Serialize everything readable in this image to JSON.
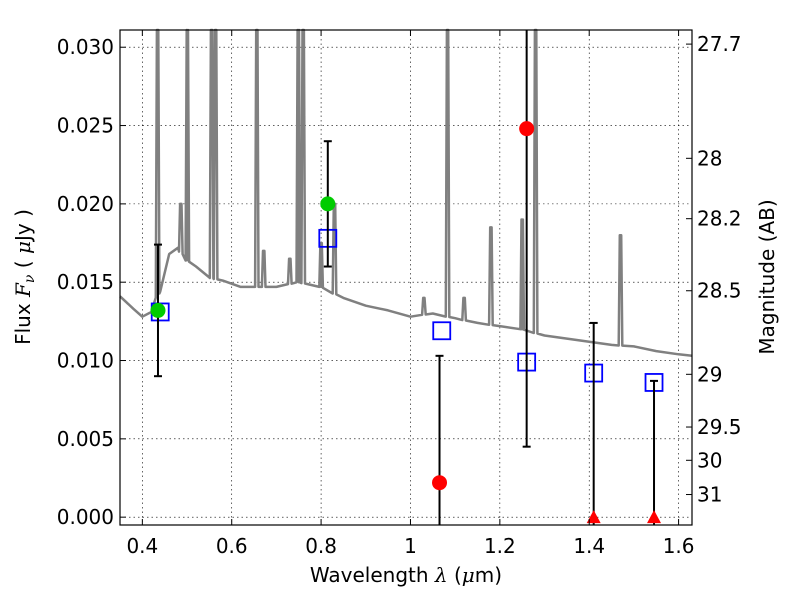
{
  "chart_data": {
    "type": "scatter",
    "xlabel": {
      "text": "Wavelength",
      "symbol": "λ",
      "unit_open": " (",
      "unit_mu": "μ",
      "unit_rest": "m)"
    },
    "ylabel": {
      "text": "Flux",
      "symbol": "F",
      "sub": "ν",
      "unit_open": " ( ",
      "unit_mu": "μ",
      "unit_rest": "Jy )"
    },
    "y2label": "Magnitude (AB)",
    "xlim": [
      0.35,
      1.63
    ],
    "ylim": [
      -0.0005,
      0.0311
    ],
    "grid": true,
    "x_ticks": [
      {
        "v": 0.4,
        "label": "0.4"
      },
      {
        "v": 0.6,
        "label": "0.6"
      },
      {
        "v": 0.8,
        "label": "0.8"
      },
      {
        "v": 1.0,
        "label": "1"
      },
      {
        "v": 1.2,
        "label": "1.2"
      },
      {
        "v": 1.4,
        "label": "1.4"
      },
      {
        "v": 1.6,
        "label": "1.6"
      }
    ],
    "y_ticks": [
      {
        "v": 0.0,
        "label": "0.000"
      },
      {
        "v": 0.005,
        "label": "0.005"
      },
      {
        "v": 0.01,
        "label": "0.010"
      },
      {
        "v": 0.015,
        "label": "0.015"
      },
      {
        "v": 0.02,
        "label": "0.020"
      },
      {
        "v": 0.025,
        "label": "0.025"
      },
      {
        "v": 0.03,
        "label": "0.030"
      }
    ],
    "mag_ticks": [
      {
        "mag": 27.7,
        "label": "27.7"
      },
      {
        "mag": 28,
        "label": "28"
      },
      {
        "mag": 28.2,
        "label": "28.2"
      },
      {
        "mag": 28.5,
        "label": "28.5"
      },
      {
        "mag": 29,
        "label": "29"
      },
      {
        "mag": 29.5,
        "label": "29.5"
      },
      {
        "mag": 30,
        "label": "30"
      },
      {
        "mag": 31,
        "label": "31"
      }
    ],
    "series": [
      {
        "name": "template-spectrum",
        "color": "#808080",
        "continuum": [
          [
            0.35,
            0.0141
          ],
          [
            0.38,
            0.0133
          ],
          [
            0.4,
            0.0128
          ],
          [
            0.42,
            0.0131
          ],
          [
            0.44,
            0.0144
          ],
          [
            0.46,
            0.0168
          ],
          [
            0.48,
            0.0172
          ],
          [
            0.5,
            0.0164
          ],
          [
            0.52,
            0.016
          ],
          [
            0.55,
            0.0153
          ],
          [
            0.58,
            0.0151
          ],
          [
            0.62,
            0.0147
          ],
          [
            0.66,
            0.0147
          ],
          [
            0.7,
            0.0147
          ],
          [
            0.75,
            0.015
          ],
          [
            0.8,
            0.0147
          ],
          [
            0.85,
            0.014
          ],
          [
            0.9,
            0.0135
          ],
          [
            0.95,
            0.0132
          ],
          [
            1.0,
            0.0128
          ],
          [
            1.05,
            0.013
          ],
          [
            1.1,
            0.0127
          ],
          [
            1.15,
            0.0124
          ],
          [
            1.2,
            0.0122
          ],
          [
            1.25,
            0.012
          ],
          [
            1.3,
            0.0116
          ],
          [
            1.35,
            0.0114
          ],
          [
            1.4,
            0.0112
          ],
          [
            1.45,
            0.011
          ],
          [
            1.5,
            0.0109
          ],
          [
            1.55,
            0.0106
          ],
          [
            1.6,
            0.0104
          ],
          [
            1.63,
            0.0103
          ]
        ],
        "lines": [
          [
            0.4341,
            0.0311
          ],
          [
            0.4861,
            0.02
          ],
          [
            0.5007,
            0.0311
          ],
          [
            0.555,
            0.0311
          ],
          [
            0.564,
            0.0311
          ],
          [
            0.6563,
            0.0311
          ],
          [
            0.6716,
            0.017
          ],
          [
            0.73,
            0.0165
          ],
          [
            0.749,
            0.0311
          ],
          [
            0.76,
            0.0311
          ],
          [
            0.8,
            0.0175
          ],
          [
            0.83,
            0.02
          ],
          [
            1.03,
            0.014
          ],
          [
            1.083,
            0.0311
          ],
          [
            1.12,
            0.014
          ],
          [
            1.18,
            0.0185
          ],
          [
            1.25,
            0.019
          ],
          [
            1.28,
            0.0311
          ],
          [
            1.47,
            0.018
          ]
        ]
      },
      {
        "name": "model-photometry",
        "marker": "open-square",
        "color": "#0000ff",
        "points": [
          [
            0.44,
            0.0131
          ],
          [
            0.815,
            0.0178
          ],
          [
            1.07,
            0.0119
          ],
          [
            1.26,
            0.0099
          ],
          [
            1.41,
            0.0092
          ],
          [
            1.545,
            0.0086
          ]
        ]
      },
      {
        "name": "observed-detections",
        "marker": "circle",
        "points": [
          {
            "x": 0.435,
            "y": 0.0132,
            "yerr": 0.0042,
            "color": "#00cc00"
          },
          {
            "x": 0.815,
            "y": 0.02,
            "yerr": 0.004,
            "color": "#00cc00"
          },
          {
            "x": 1.065,
            "y": 0.0022,
            "yerr": 0.0081,
            "color": "#ff0000"
          },
          {
            "x": 1.26,
            "y": 0.0248,
            "yerr": 0.0203,
            "color": "#ff0000"
          }
        ]
      },
      {
        "name": "observed-nondetections",
        "marker": "triangle",
        "color": "#ff0000",
        "points": [
          {
            "x": 1.41,
            "y": 0.0,
            "yerr": 0.0124
          },
          {
            "x": 1.545,
            "y": 0.0,
            "yerr": 0.0087
          }
        ]
      }
    ]
  }
}
